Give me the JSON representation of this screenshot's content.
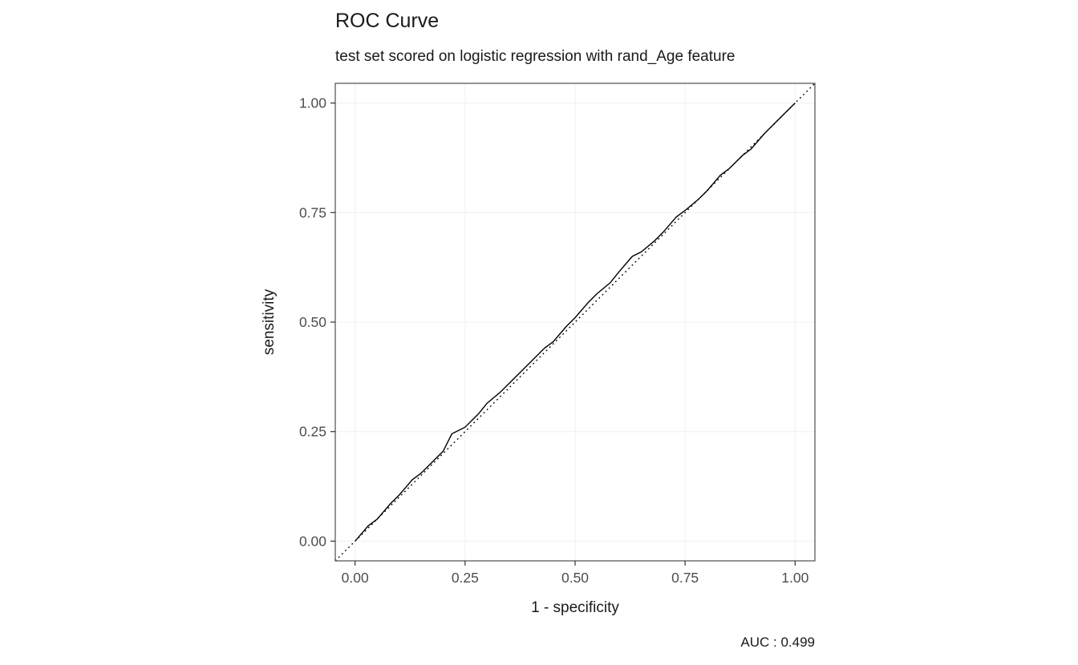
{
  "chart_data": {
    "type": "line",
    "title": "ROC Curve",
    "subtitle": "test set scored on logistic regression with rand_Age feature",
    "xlabel": "1 - specificity",
    "ylabel": "sensitivity",
    "caption": "AUC : 0.499",
    "auc": 0.499,
    "xlim": [
      -0.045,
      1.045
    ],
    "ylim": [
      -0.045,
      1.045
    ],
    "x_ticks": [
      0.0,
      0.25,
      0.5,
      0.75,
      1.0
    ],
    "x_tick_labels": [
      "0.00",
      "0.25",
      "0.50",
      "0.75",
      "1.00"
    ],
    "y_ticks": [
      0.0,
      0.25,
      0.5,
      0.75,
      1.0
    ],
    "y_tick_labels": [
      "0.00",
      "0.25",
      "0.50",
      "0.75",
      "1.00"
    ],
    "legend": "none",
    "grid": "light",
    "series": [
      {
        "name": "roc-curve",
        "style": "solid",
        "color": "#000000",
        "x": [
          0.0,
          0.03,
          0.05,
          0.08,
          0.1,
          0.13,
          0.15,
          0.18,
          0.2,
          0.22,
          0.25,
          0.28,
          0.3,
          0.33,
          0.35,
          0.38,
          0.4,
          0.43,
          0.45,
          0.48,
          0.5,
          0.53,
          0.55,
          0.58,
          0.6,
          0.63,
          0.65,
          0.68,
          0.7,
          0.73,
          0.75,
          0.78,
          0.8,
          0.83,
          0.85,
          0.88,
          0.9,
          0.93,
          0.95,
          0.98,
          1.0
        ],
        "y": [
          0.0,
          0.035,
          0.05,
          0.085,
          0.105,
          0.14,
          0.155,
          0.185,
          0.205,
          0.245,
          0.26,
          0.29,
          0.315,
          0.34,
          0.36,
          0.39,
          0.41,
          0.44,
          0.455,
          0.49,
          0.51,
          0.545,
          0.565,
          0.59,
          0.615,
          0.65,
          0.66,
          0.685,
          0.705,
          0.74,
          0.755,
          0.78,
          0.8,
          0.835,
          0.85,
          0.88,
          0.895,
          0.93,
          0.95,
          0.98,
          1.0
        ]
      },
      {
        "name": "reference-diagonal",
        "style": "dotted",
        "color": "#000000",
        "x": [
          -0.045,
          1.045
        ],
        "y": [
          -0.045,
          1.045
        ]
      }
    ]
  },
  "colors": {
    "panel_border": "#4d4d4d",
    "tick_mark": "#333333",
    "tick_label": "#4d4d4d",
    "gridline": "#f0f0f0",
    "background": "#ffffff"
  }
}
